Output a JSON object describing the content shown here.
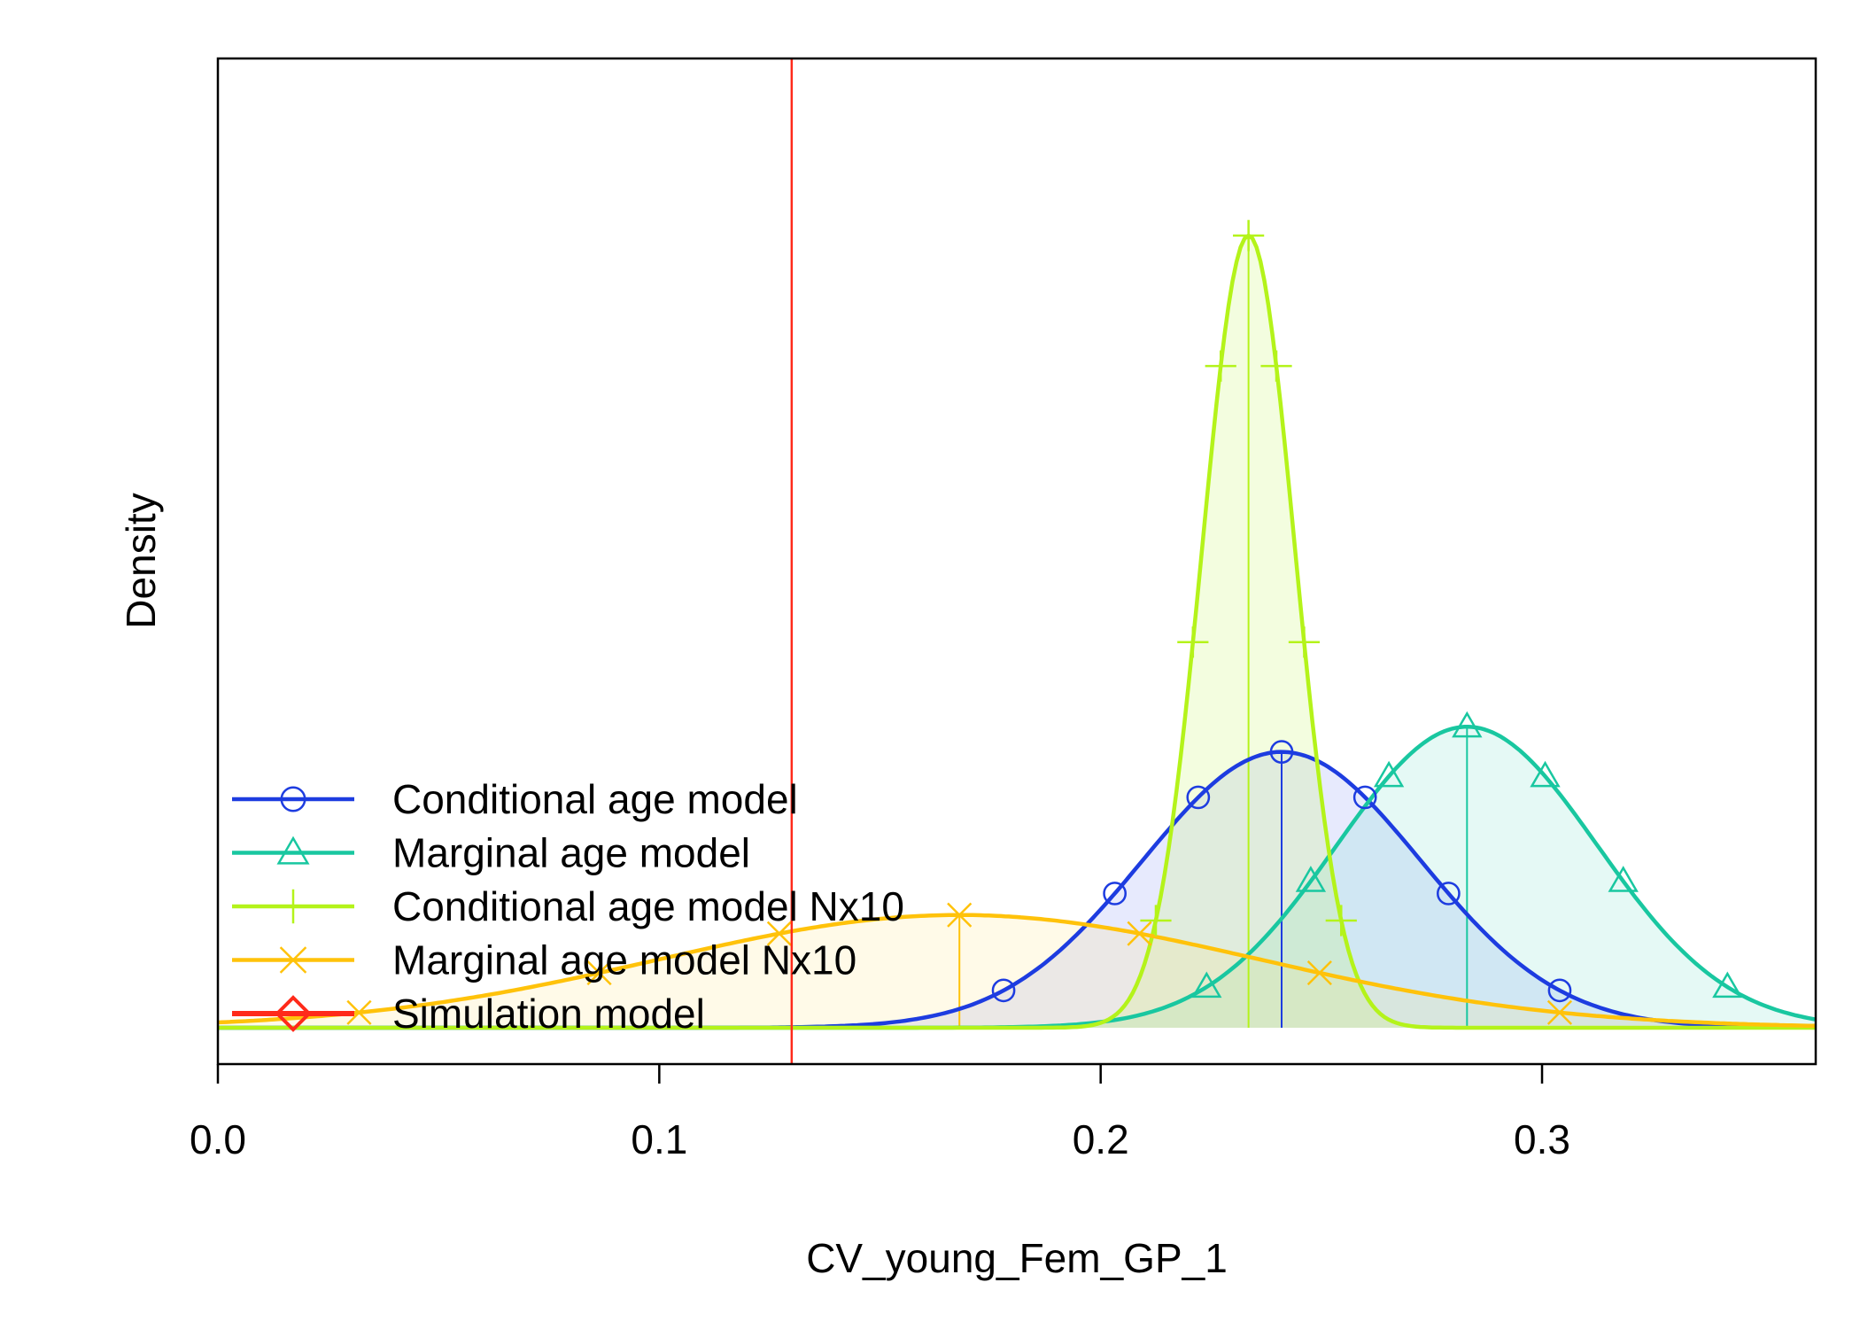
{
  "chart_data": {
    "type": "area",
    "title": "",
    "xlabel": "CV_young_Fem_GP_1",
    "ylabel": "Density",
    "xlim": [
      0.0,
      0.362
    ],
    "xticks": [
      0.0,
      0.1,
      0.2,
      0.3
    ],
    "xtick_labels": [
      "0.0",
      "0.1",
      "0.2",
      "0.3"
    ],
    "ylim": [
      0,
      1.04
    ],
    "y_ticks_shown": false,
    "grid": false,
    "legend_position": "bottom-left",
    "reference_line": {
      "name": "Simulation model",
      "x": 0.13,
      "color": "#ff2a1a"
    },
    "series": [
      {
        "name": "Conditional age model",
        "dist": "normal",
        "mean": 0.241,
        "sd": 0.0315,
        "peak": 0.296,
        "color": "#1d3ce0",
        "fill": "rgba(120,140,245,0.18)",
        "marker": "circle"
      },
      {
        "name": "Marginal age model",
        "dist": "normal",
        "mean": 0.283,
        "sd": 0.0295,
        "peak": 0.323,
        "color": "#19c7a0",
        "fill": "rgba(80,215,185,0.15)",
        "marker": "triangle"
      },
      {
        "name": "Conditional age model Nx10",
        "dist": "normal",
        "mean": 0.2335,
        "sd": 0.0105,
        "peak": 0.85,
        "color": "#b4f31a",
        "fill": "rgba(200,245,110,0.22)",
        "marker": "plus"
      },
      {
        "name": "Marginal age model Nx10",
        "dist": "normal",
        "mean": 0.168,
        "sd": 0.068,
        "peak": 0.121,
        "color": "#ffc20a",
        "fill": "rgba(255,225,130,0.18)",
        "marker": "x"
      },
      {
        "name": "Simulation model",
        "dist": "line",
        "color": "#ff2a1a",
        "marker": "diamond"
      }
    ]
  }
}
